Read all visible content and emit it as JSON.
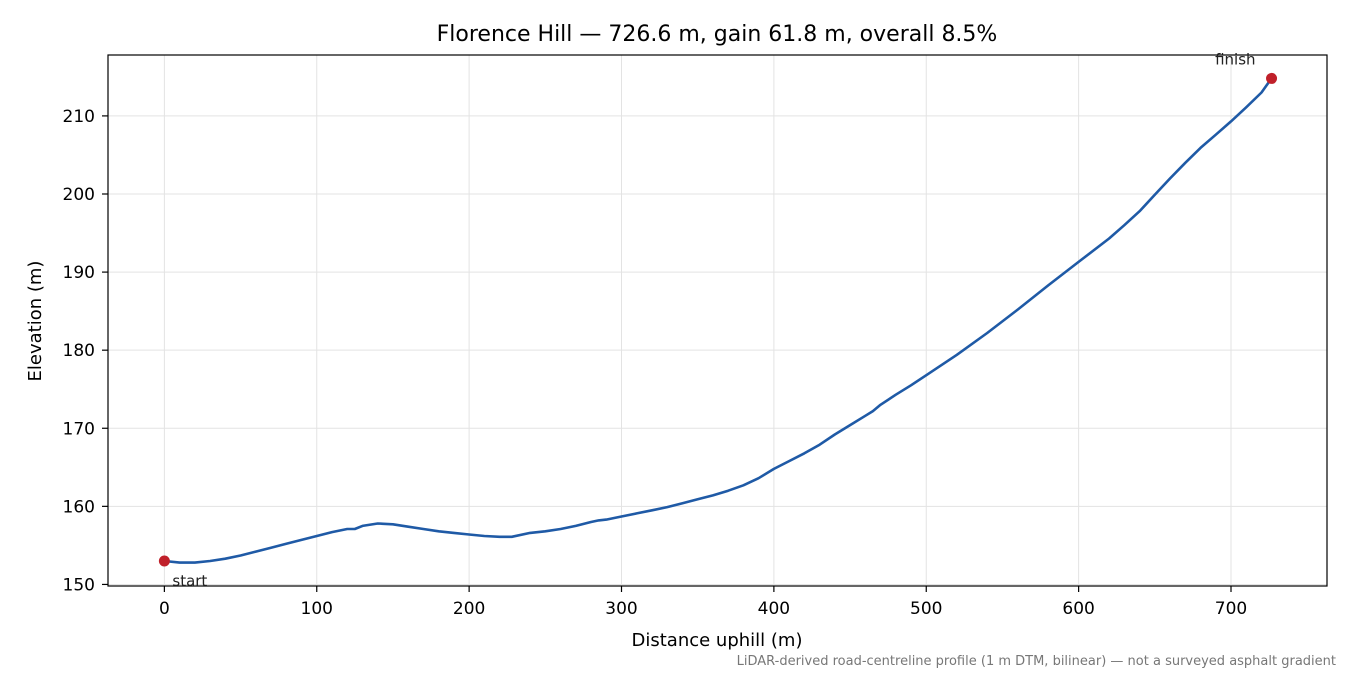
{
  "chart_data": {
    "type": "line",
    "title": "Florence Hill — 726.6 m, gain 61.8 m, overall 8.5%",
    "xlabel": "Distance uphill (m)",
    "ylabel": "Elevation (m)",
    "footnote": "LiDAR-derived road-centreline profile (1 m DTM, bilinear) — not a surveyed asphalt gradient",
    "xlim": [
      -37,
      763
    ],
    "ylim": [
      149.8,
      217.8
    ],
    "xticks": [
      0,
      100,
      200,
      300,
      400,
      500,
      600,
      700
    ],
    "yticks": [
      150,
      160,
      170,
      180,
      190,
      200,
      210
    ],
    "grid": true,
    "line_color": "#1f5aa6",
    "marker_color": "#c0202a",
    "series": [
      {
        "x": [
          0,
          10,
          20,
          30,
          40,
          50,
          60,
          70,
          80,
          90,
          100,
          110,
          120,
          125,
          130,
          140,
          150,
          160,
          170,
          180,
          190,
          200,
          210,
          220,
          228,
          240,
          250,
          260,
          270,
          280,
          285,
          290,
          300,
          310,
          320,
          330,
          340,
          350,
          360,
          370,
          380,
          390,
          400,
          410,
          420,
          430,
          440,
          450,
          460,
          465,
          470,
          480,
          490,
          500,
          520,
          540,
          560,
          580,
          600,
          620,
          630,
          640,
          650,
          660,
          670,
          680,
          690,
          700,
          710,
          720,
          726.6
        ],
        "y": [
          153.0,
          152.8,
          152.8,
          153.0,
          153.3,
          153.7,
          154.2,
          154.7,
          155.2,
          155.7,
          156.2,
          156.7,
          157.1,
          157.1,
          157.5,
          157.8,
          157.7,
          157.4,
          157.1,
          156.8,
          156.6,
          156.4,
          156.2,
          156.1,
          156.1,
          156.6,
          156.8,
          157.1,
          157.5,
          158.0,
          158.2,
          158.3,
          158.7,
          159.1,
          159.5,
          159.9,
          160.4,
          160.9,
          161.4,
          162.0,
          162.7,
          163.6,
          164.8,
          165.8,
          166.8,
          167.9,
          169.2,
          170.4,
          171.6,
          172.2,
          173.0,
          174.3,
          175.5,
          176.8,
          179.4,
          182.2,
          185.2,
          188.3,
          191.3,
          194.3,
          196.0,
          197.8,
          199.9,
          202.0,
          204.0,
          205.9,
          207.6,
          209.3,
          211.1,
          213.0,
          214.8
        ]
      }
    ],
    "annotations": [
      {
        "label": "start",
        "x": 0,
        "y": 153.0
      },
      {
        "label": "finish",
        "x": 726.6,
        "y": 214.8
      }
    ]
  }
}
